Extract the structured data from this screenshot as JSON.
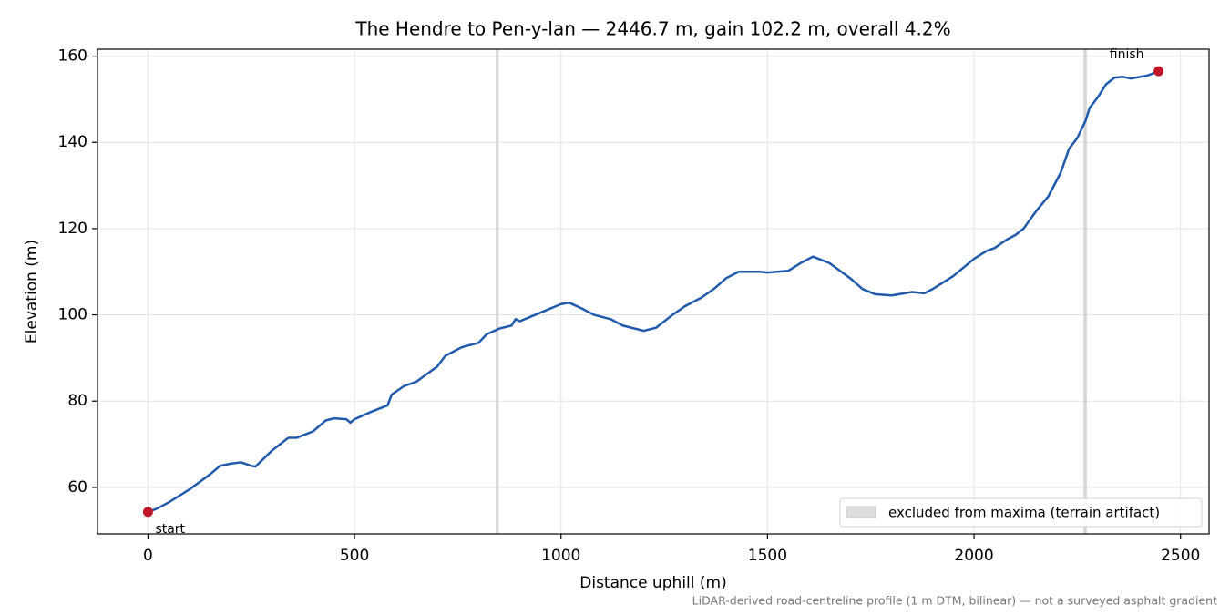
{
  "chart_data": {
    "type": "line",
    "title": "The Hendre to Pen-y-lan — 2446.7 m, gain 102.2 m, overall 4.2%",
    "xlabel": "Distance uphill (m)",
    "ylabel": "Elevation (m)",
    "x": [
      0,
      20,
      50,
      100,
      150,
      175,
      200,
      225,
      250,
      260,
      300,
      340,
      360,
      400,
      430,
      450,
      480,
      490,
      500,
      540,
      580,
      590,
      620,
      650,
      700,
      720,
      760,
      800,
      820,
      850,
      880,
      890,
      900,
      950,
      1000,
      1020,
      1050,
      1080,
      1120,
      1150,
      1200,
      1230,
      1270,
      1300,
      1340,
      1370,
      1400,
      1430,
      1480,
      1500,
      1550,
      1580,
      1610,
      1650,
      1700,
      1730,
      1760,
      1800,
      1850,
      1880,
      1900,
      1950,
      2000,
      2030,
      2050,
      2080,
      2100,
      2120,
      2150,
      2180,
      2210,
      2230,
      2250,
      2270,
      2280,
      2300,
      2320,
      2340,
      2360,
      2380,
      2420,
      2446.7
    ],
    "series": [
      {
        "color": "#1f5aad",
        "values": [
          54.3,
          55,
          56.5,
          59.5,
          63,
          65,
          65.5,
          65.8,
          65,
          64.8,
          68.5,
          71.5,
          71.5,
          73,
          75.5,
          76,
          75.8,
          75,
          75.8,
          77.5,
          79,
          81.5,
          83.5,
          84.5,
          88,
          90.5,
          92.5,
          93.5,
          95.5,
          96.8,
          97.5,
          99,
          98.5,
          100.5,
          102.5,
          102.8,
          101.5,
          100,
          99,
          97.5,
          96.3,
          97,
          100,
          102,
          104,
          106,
          108.5,
          110,
          110,
          109.8,
          110.2,
          112,
          113.5,
          112,
          108.5,
          106,
          104.8,
          104.5,
          105.3,
          105,
          106,
          109,
          113,
          114.8,
          115.5,
          117.5,
          118.5,
          120,
          124,
          127.5,
          133,
          138.5,
          141,
          145,
          148,
          150.5,
          153.5,
          155,
          155.2,
          154.8,
          155.5,
          156.5
        ]
      }
    ],
    "excluded_spans": {
      "label": "excluded from maxima (terrain artifact)",
      "color": "#c8c8c8",
      "ranges": [
        [
          842,
          849
        ],
        [
          2265,
          2273
        ]
      ]
    },
    "annotations": [
      {
        "text": "start",
        "x": 0,
        "y": 54.3
      },
      {
        "text": "finish",
        "x": 2446.7,
        "y": 156.5
      }
    ],
    "marker_color": "#c0182a",
    "xlim": [
      -122.3,
      2569
    ],
    "ylim": [
      49.2,
      161.6
    ],
    "xticks": [
      0,
      500,
      1000,
      1500,
      2000,
      2500
    ],
    "yticks": [
      60,
      80,
      100,
      120,
      140,
      160
    ],
    "grid": true,
    "legend": "lower right",
    "footnote": "LiDAR-derived road-centreline profile (1 m DTM, bilinear) — not a surveyed asphalt gradient"
  }
}
